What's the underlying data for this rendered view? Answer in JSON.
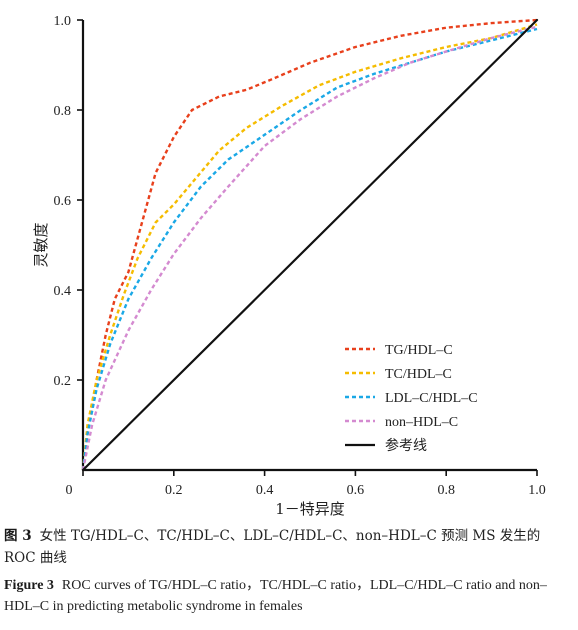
{
  "chart_data": {
    "type": "line",
    "title": "",
    "xlabel": "1－特异度",
    "ylabel": "灵敏度",
    "xlim": [
      0,
      1
    ],
    "ylim": [
      0,
      1
    ],
    "x_ticks": [
      "0",
      "0.2",
      "0.4",
      "0.6",
      "0.8",
      "1.0"
    ],
    "y_ticks": [
      "0.2",
      "0.4",
      "0.6",
      "0.8",
      "1.0"
    ],
    "legend_position": "bottom-right",
    "series": [
      {
        "name": "TG/HDL–C",
        "color": "#e8401c",
        "dash": true,
        "points": [
          [
            0,
            0
          ],
          [
            0.01,
            0.08
          ],
          [
            0.03,
            0.2
          ],
          [
            0.05,
            0.3
          ],
          [
            0.07,
            0.38
          ],
          [
            0.1,
            0.44
          ],
          [
            0.13,
            0.55
          ],
          [
            0.16,
            0.66
          ],
          [
            0.2,
            0.74
          ],
          [
            0.24,
            0.8
          ],
          [
            0.3,
            0.83
          ],
          [
            0.36,
            0.845
          ],
          [
            0.42,
            0.87
          ],
          [
            0.5,
            0.905
          ],
          [
            0.6,
            0.94
          ],
          [
            0.7,
            0.965
          ],
          [
            0.8,
            0.983
          ],
          [
            0.9,
            0.993
          ],
          [
            1,
            1
          ]
        ]
      },
      {
        "name": "TC/HDL–C",
        "color": "#f5bc00",
        "dash": true,
        "points": [
          [
            0,
            0
          ],
          [
            0.01,
            0.1
          ],
          [
            0.03,
            0.2
          ],
          [
            0.06,
            0.3
          ],
          [
            0.09,
            0.39
          ],
          [
            0.12,
            0.47
          ],
          [
            0.16,
            0.55
          ],
          [
            0.2,
            0.59
          ],
          [
            0.25,
            0.65
          ],
          [
            0.3,
            0.71
          ],
          [
            0.36,
            0.76
          ],
          [
            0.44,
            0.81
          ],
          [
            0.52,
            0.855
          ],
          [
            0.6,
            0.885
          ],
          [
            0.7,
            0.915
          ],
          [
            0.8,
            0.94
          ],
          [
            0.9,
            0.96
          ],
          [
            1,
            0.99
          ]
        ]
      },
      {
        "name": "LDL–C/HDL–C",
        "color": "#1aa8e6",
        "dash": true,
        "points": [
          [
            0,
            0
          ],
          [
            0.01,
            0.08
          ],
          [
            0.03,
            0.18
          ],
          [
            0.06,
            0.28
          ],
          [
            0.1,
            0.38
          ],
          [
            0.15,
            0.47
          ],
          [
            0.2,
            0.55
          ],
          [
            0.26,
            0.63
          ],
          [
            0.32,
            0.69
          ],
          [
            0.4,
            0.745
          ],
          [
            0.48,
            0.8
          ],
          [
            0.56,
            0.85
          ],
          [
            0.64,
            0.88
          ],
          [
            0.72,
            0.905
          ],
          [
            0.8,
            0.93
          ],
          [
            0.9,
            0.955
          ],
          [
            1,
            0.98
          ]
        ]
      },
      {
        "name": "non–HDL–C",
        "color": "#d48ad0",
        "dash": true,
        "points": [
          [
            0,
            0
          ],
          [
            0.02,
            0.1
          ],
          [
            0.05,
            0.2
          ],
          [
            0.1,
            0.31
          ],
          [
            0.15,
            0.4
          ],
          [
            0.2,
            0.48
          ],
          [
            0.26,
            0.56
          ],
          [
            0.32,
            0.63
          ],
          [
            0.4,
            0.72
          ],
          [
            0.48,
            0.78
          ],
          [
            0.56,
            0.83
          ],
          [
            0.64,
            0.87
          ],
          [
            0.72,
            0.905
          ],
          [
            0.8,
            0.93
          ],
          [
            0.9,
            0.96
          ],
          [
            1,
            0.985
          ]
        ]
      },
      {
        "name": "参考线",
        "color": "#111111",
        "dash": false,
        "points": [
          [
            0,
            0
          ],
          [
            1,
            1
          ]
        ]
      }
    ]
  },
  "caption": {
    "cn_number": "图 3",
    "cn_text": "女性 TG/HDL–C、TC/HDL–C、LDL–C/HDL–C、non–HDL–C 预测 MS 发生的 ROC 曲线",
    "en_number": "Figure 3",
    "en_text": "ROC curves of TG/HDL–C ratio，TC/HDL–C ratio，LDL–C/HDL–C ratio and non–HDL–C in predicting metabolic syndrome in females"
  }
}
